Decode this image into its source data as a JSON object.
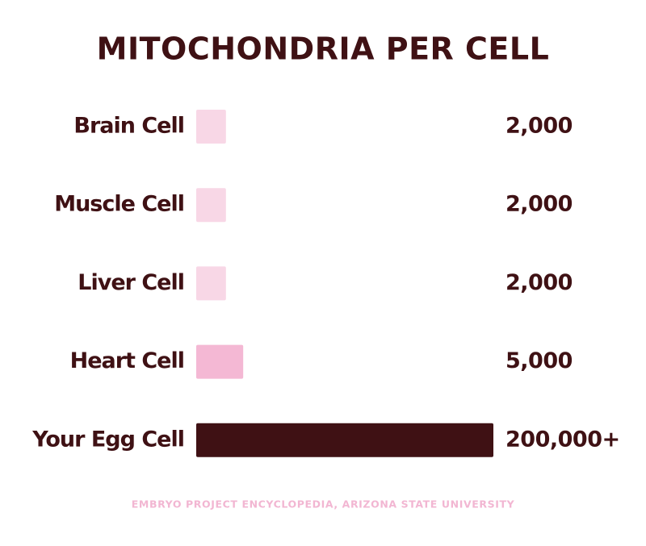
{
  "chart_data": {
    "type": "bar",
    "orientation": "horizontal",
    "title": "MITOCHONDRIA PER CELL",
    "categories": [
      "Brain Cell",
      "Muscle Cell",
      "Liver Cell",
      "Heart Cell",
      "Your Egg Cell"
    ],
    "values": [
      2000,
      2000,
      2000,
      5000,
      200000
    ],
    "value_labels": [
      "2,000",
      "2,000",
      "2,000",
      "5,000",
      "200,000+"
    ],
    "colors": [
      "#f8d7e6",
      "#f8d7e6",
      "#f8d7e6",
      "#f4b8d4",
      "#3f1114"
    ],
    "source": "EMBRYO PROJECT ENCYCLOPEDIA, ARIZONA STATE UNIVERSITY"
  }
}
